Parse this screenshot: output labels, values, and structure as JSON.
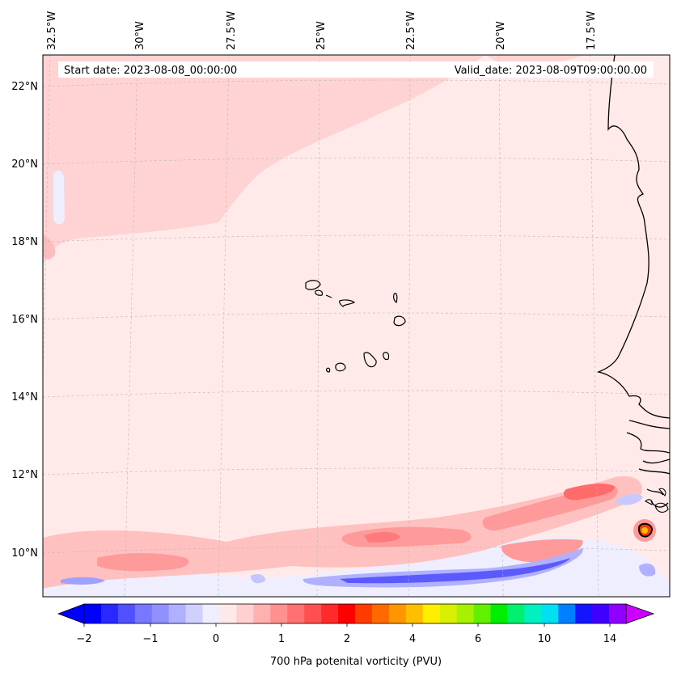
{
  "header": {
    "start_date": "Start date: 2023-08-08_00:00:00",
    "valid_date": "Valid_date: 2023-08-09T09:00:00.00"
  },
  "map": {
    "longitude_labels": [
      "32.5°W",
      "30°W",
      "27.5°W",
      "25°W",
      "22.5°W",
      "20°W",
      "17.5°W"
    ],
    "latitude_labels": [
      "22°N",
      "20°N",
      "18°N",
      "16°N",
      "14°N",
      "12°N",
      "10°N"
    ],
    "field": "700 hPa potential vorticity",
    "background_color": "#ffe9e9"
  },
  "colorbar": {
    "title": "700 hPa potenital vorticity (PVU)",
    "tick_labels": [
      "−2",
      "−1",
      "0",
      "1",
      "2",
      "4",
      "6",
      "10",
      "14"
    ],
    "colors": [
      "#0000ff",
      "#2828ff",
      "#5050ff",
      "#7878ff",
      "#9090ff",
      "#b0b0ff",
      "#d0d0ff",
      "#eeeeff",
      "#ffe8e8",
      "#ffd0d0",
      "#ffb0b0",
      "#ff9090",
      "#ff7070",
      "#ff5050",
      "#ff2a2a",
      "#ff0000",
      "#ff3c00",
      "#ff6a00",
      "#ff9600",
      "#ffbe00",
      "#ffee00",
      "#d8f000",
      "#a8f000",
      "#60f000",
      "#00ee00",
      "#00f070",
      "#00f0c0",
      "#00e0f0",
      "#0080ff",
      "#1414ff",
      "#4000ff",
      "#9000ff"
    ],
    "under_color": "#0000ff",
    "over_color": "#cc00ff"
  }
}
